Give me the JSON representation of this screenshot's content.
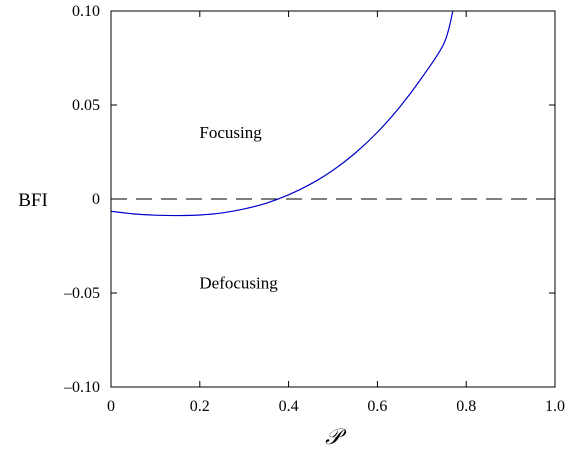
{
  "chart_data": {
    "type": "line",
    "xlabel": "𝒫",
    "ylabel": "BFI",
    "xlim": [
      0,
      1.0
    ],
    "ylim": [
      -0.1,
      0.1
    ],
    "x_ticks": [
      0,
      0.2,
      0.4,
      0.6,
      0.8,
      1.0
    ],
    "x_tick_labels": [
      "0",
      "0.2",
      "0.4",
      "0.6",
      "0.8",
      "1.0"
    ],
    "y_ticks": [
      -0.1,
      -0.05,
      0,
      0.05,
      0.1
    ],
    "y_tick_labels": [
      "–0.10",
      "–0.05",
      "0",
      "0.05",
      "0.10"
    ],
    "grid": false,
    "series": [
      {
        "color": "#0000cc",
        "style": "solid",
        "x": [
          0,
          0.05,
          0.1,
          0.15,
          0.2,
          0.25,
          0.3,
          0.35,
          0.4,
          0.45,
          0.5,
          0.55,
          0.6,
          0.65,
          0.7,
          0.75,
          0.77
        ],
        "y": [
          -0.0065,
          -0.0079,
          -0.0086,
          -0.0088,
          -0.0085,
          -0.0074,
          -0.0053,
          -0.0022,
          0.0022,
          0.008,
          0.0153,
          0.0244,
          0.0355,
          0.0488,
          0.0645,
          0.0828,
          0.1
        ]
      }
    ],
    "reference_line": {
      "y": 0,
      "color": "#000000",
      "style": "dashed"
    },
    "annotations": [
      {
        "text": "Focusing",
        "x": 0.1,
        "y": 0.035
      },
      {
        "text": "Defocusing",
        "x": 0.1,
        "y": -0.045
      }
    ]
  }
}
